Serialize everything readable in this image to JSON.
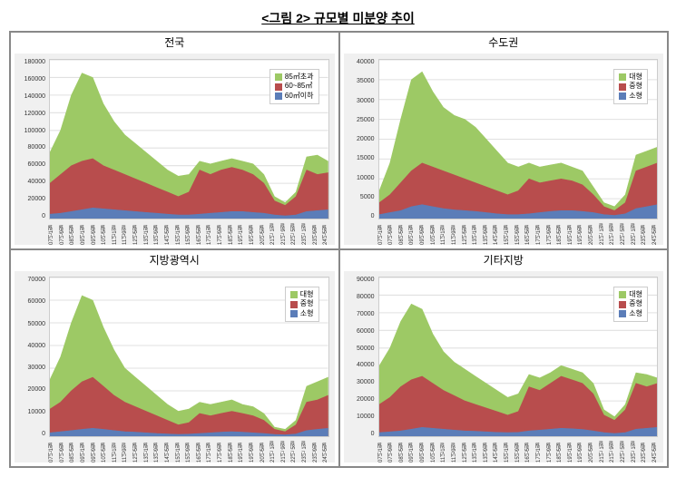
{
  "main_title": "<그림 2> 규모별 미분양 추이",
  "colors": {
    "series_a": "#9dc965",
    "series_b": "#b84d4d",
    "series_c": "#5b7db8",
    "grid": "#e0e0e0",
    "plot_bg": "#ffffff",
    "panel_bg": "#f0f0f0"
  },
  "x_labels": [
    "07년1월",
    "07년9월",
    "08년5월",
    "09년1월",
    "09년9월",
    "10년5월",
    "11년1월",
    "11년9월",
    "12년5월",
    "13년1월",
    "13년9월",
    "14년5월",
    "15년1월",
    "15년9월",
    "16년5월",
    "17년1월",
    "17년9월",
    "18년5월",
    "19년1월",
    "19년9월",
    "20년5월",
    "21년 1월",
    "21년 9월",
    "22년 5월",
    "23년 1월",
    "23년9월",
    "24년5월"
  ],
  "panels": [
    {
      "title": "전국",
      "legend": [
        "85㎡초과",
        "60~85㎡",
        "60㎡이하"
      ],
      "ymax": 180000,
      "ystep": 20000,
      "series_c": [
        5000,
        6000,
        8000,
        10000,
        12000,
        11000,
        10000,
        9000,
        8000,
        7000,
        6000,
        5000,
        4000,
        4000,
        5000,
        6000,
        7000,
        8000,
        8000,
        7000,
        6000,
        4000,
        3000,
        4000,
        8000,
        9000,
        10000
      ],
      "series_b": [
        40000,
        50000,
        60000,
        65000,
        68000,
        60000,
        55000,
        50000,
        45000,
        40000,
        35000,
        30000,
        25000,
        30000,
        55000,
        50000,
        55000,
        58000,
        55000,
        50000,
        40000,
        20000,
        15000,
        25000,
        55000,
        50000,
        52000
      ],
      "series_a": [
        75000,
        100000,
        140000,
        165000,
        160000,
        130000,
        110000,
        95000,
        85000,
        75000,
        65000,
        55000,
        48000,
        50000,
        65000,
        62000,
        65000,
        68000,
        65000,
        62000,
        50000,
        25000,
        18000,
        30000,
        70000,
        72000,
        65000
      ]
    },
    {
      "title": "수도권",
      "legend": [
        "대형",
        "중형",
        "소형"
      ],
      "ymax": 40000,
      "ystep": 5000,
      "series_c": [
        1000,
        1500,
        2000,
        3000,
        3500,
        3000,
        2500,
        2200,
        2000,
        1800,
        1500,
        1200,
        1000,
        1000,
        1200,
        1500,
        1800,
        2000,
        2000,
        1800,
        1500,
        1000,
        800,
        1200,
        2500,
        3000,
        3500
      ],
      "series_b": [
        4000,
        6000,
        9000,
        12000,
        14000,
        13000,
        12000,
        11000,
        10000,
        9000,
        8000,
        7000,
        6000,
        7000,
        10000,
        9000,
        9500,
        10000,
        9500,
        8500,
        6000,
        3000,
        2000,
        4000,
        12000,
        13000,
        14000
      ],
      "series_a": [
        7000,
        14000,
        25000,
        35000,
        37000,
        32000,
        28000,
        26000,
        25000,
        23000,
        20000,
        17000,
        14000,
        13000,
        14000,
        13000,
        13500,
        14000,
        13000,
        12000,
        8000,
        4000,
        3000,
        6000,
        16000,
        17000,
        18000
      ]
    },
    {
      "title": "지방광역시",
      "legend": [
        "대형",
        "중형",
        "소형"
      ],
      "ymax": 70000,
      "ystep": 10000,
      "series_c": [
        1500,
        2000,
        2500,
        3000,
        3500,
        3000,
        2500,
        2000,
        1800,
        1500,
        1200,
        1000,
        800,
        900,
        1200,
        1500,
        1800,
        2000,
        1800,
        1500,
        1200,
        800,
        600,
        1000,
        2500,
        3000,
        3500
      ],
      "series_b": [
        12000,
        15000,
        20000,
        24000,
        26000,
        22000,
        18000,
        15000,
        13000,
        11000,
        9000,
        7000,
        5000,
        6000,
        10000,
        9000,
        10000,
        11000,
        10000,
        9000,
        7000,
        3000,
        2000,
        5000,
        15000,
        16000,
        18000
      ],
      "series_a": [
        25000,
        35000,
        50000,
        62000,
        60000,
        48000,
        38000,
        30000,
        26000,
        22000,
        18000,
        14000,
        11000,
        12000,
        15000,
        14000,
        15000,
        16000,
        14000,
        13000,
        10000,
        4000,
        3000,
        7000,
        22000,
        24000,
        26000
      ]
    },
    {
      "title": "기타지방",
      "legend": [
        "대형",
        "중형",
        "소형"
      ],
      "ymax": 90000,
      "ystep": 10000,
      "series_c": [
        2000,
        2500,
        3000,
        4000,
        5000,
        4500,
        4000,
        3500,
        3000,
        2800,
        2500,
        2200,
        2000,
        2200,
        3000,
        3500,
        4000,
        4500,
        4200,
        3800,
        3000,
        2000,
        1500,
        2000,
        4000,
        4500,
        5000
      ],
      "series_b": [
        18000,
        22000,
        28000,
        32000,
        34000,
        30000,
        26000,
        23000,
        20000,
        18000,
        16000,
        14000,
        12000,
        14000,
        28000,
        26000,
        30000,
        34000,
        32000,
        30000,
        24000,
        12000,
        9000,
        15000,
        30000,
        28000,
        30000
      ],
      "series_a": [
        40000,
        50000,
        65000,
        75000,
        72000,
        58000,
        48000,
        42000,
        38000,
        34000,
        30000,
        26000,
        22000,
        24000,
        35000,
        33000,
        36000,
        40000,
        38000,
        36000,
        30000,
        15000,
        11000,
        18000,
        36000,
        35000,
        33000
      ]
    }
  ]
}
